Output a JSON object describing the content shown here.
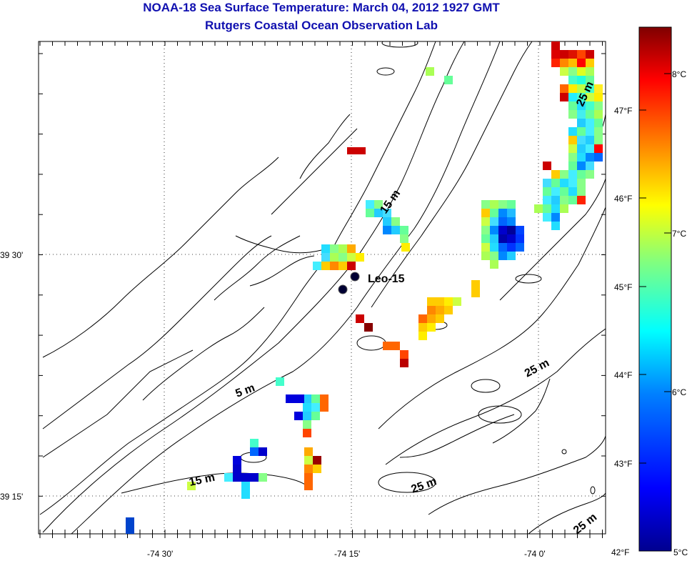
{
  "header": {
    "title": "NOAA-18 Sea Surface Temperature:  March 04, 2012 1927 GMT",
    "subtitle": "Rutgers Coastal Ocean Observation Lab"
  },
  "axes": {
    "x_ticks": [
      "-74 30'",
      "-74 15'",
      "-74 0'"
    ],
    "y_ticks": [
      "39 30'",
      "39 15'"
    ]
  },
  "station": {
    "label": "Leo-15"
  },
  "contour_labels": [
    "5 m",
    "15 m",
    "15 m",
    "25 m",
    "25 m",
    "25 m",
    "25 m"
  ],
  "colorbar": {
    "celsius_labels": [
      "8°C",
      "7°C",
      "6°C",
      "5°C"
    ],
    "fahrenheit_labels": [
      "47°F",
      "46°F",
      "45°F",
      "44°F",
      "43°F",
      "42°F"
    ],
    "colors": [
      "#7f0000",
      "#ff0000",
      "#ff8000",
      "#ffff00",
      "#80ff80",
      "#00ffff",
      "#0080ff",
      "#0000ff",
      "#00008f"
    ]
  },
  "colors": {
    "title": "#1010b0"
  }
}
